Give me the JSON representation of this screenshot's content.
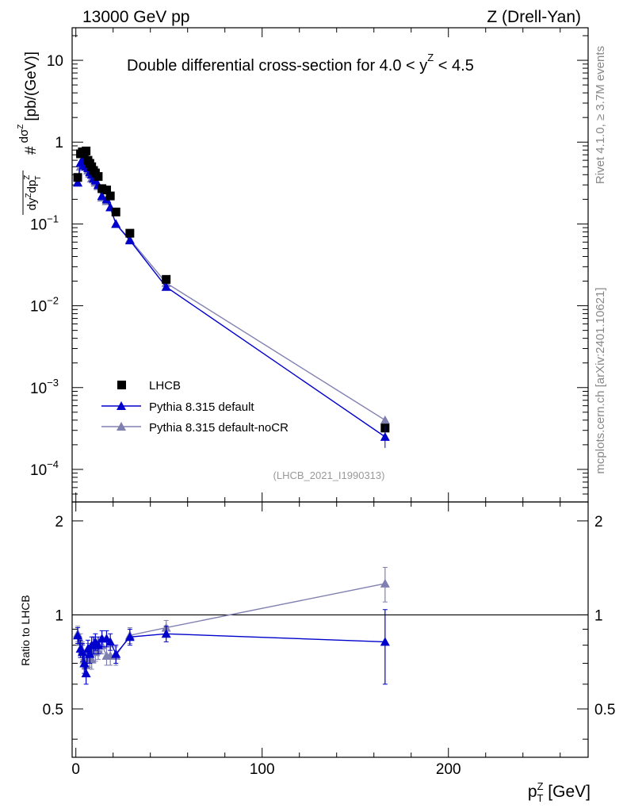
{
  "header": {
    "left": "13000 GeV pp",
    "right": "Z (Drell-Yan)"
  },
  "side": {
    "rivet": "Rivet 4.1.0, ≥ 3.7M events",
    "mcplots": "mcplots.cern.ch [arXiv:2401.10621]"
  },
  "chart_data": {
    "type": "scatter",
    "title": "Double differential cross-section for 4.0 < y^Z < 4.5",
    "analysis_id": "(LHCB_2021_I1990313)",
    "ylabel": "# dσ^Z / dy^Z dp_T^Z [pb/(GeV)]",
    "xlabel": "p_T^Z [GeV]",
    "ratio_ylabel": "Ratio to LHCB",
    "xlim": [
      -2,
      275
    ],
    "ylim": [
      4e-05,
      25
    ],
    "ratio_ylim": [
      0.35,
      2.3
    ],
    "x_ticks": [
      "0",
      "100",
      "200"
    ],
    "x_tick_values": [
      0,
      100,
      200
    ],
    "y_ticks": [
      "10",
      "1",
      "10^-1",
      "10^-2",
      "10^-3",
      "10^-4"
    ],
    "y_tick_values": [
      10,
      1,
      0.1,
      0.01,
      0.001,
      0.0001
    ],
    "ratio_ticks": [
      "2",
      "1",
      "0.5"
    ],
    "ratio_tick_values": [
      2,
      1,
      0.5
    ],
    "legend_position": "bottom-left",
    "x": [
      1,
      2.5,
      3.5,
      4.5,
      5.5,
      6.5,
      7.5,
      8.5,
      9.5,
      10.5,
      12,
      14,
      16.5,
      18.5,
      21.5,
      29,
      48.5,
      166
    ],
    "series": [
      {
        "name": "LHCB",
        "color": "#000000",
        "marker": "square",
        "values": [
          0.37,
          0.72,
          0.76,
          0.75,
          0.78,
          0.6,
          0.55,
          0.5,
          0.45,
          0.42,
          0.38,
          0.27,
          0.26,
          0.22,
          0.14,
          0.077,
          0.021,
          0.00032
        ]
      },
      {
        "name": "Pythia 8.315 default",
        "color": "#0000CC",
        "marker": "triangle",
        "values": [
          0.32,
          0.56,
          0.6,
          0.52,
          0.5,
          0.48,
          0.43,
          0.4,
          0.36,
          0.34,
          0.3,
          0.22,
          0.2,
          0.16,
          0.1,
          0.063,
          0.017,
          0.00025
        ],
        "ratio": [
          0.86,
          0.78,
          0.76,
          0.7,
          0.65,
          0.78,
          0.75,
          0.8,
          0.8,
          0.82,
          0.8,
          0.84,
          0.84,
          0.82,
          0.75,
          0.85,
          0.87,
          0.82
        ]
      },
      {
        "name": "Pythia 8.315 default-noCR",
        "color": "#8080B0",
        "marker": "triangle",
        "values": [
          0.32,
          0.5,
          0.54,
          0.55,
          0.54,
          0.45,
          0.41,
          0.36,
          0.35,
          0.32,
          0.29,
          0.21,
          0.19,
          0.16,
          0.1,
          0.065,
          0.019,
          0.0004
        ],
        "ratio": [
          0.87,
          0.82,
          0.77,
          0.72,
          0.69,
          0.76,
          0.73,
          0.72,
          0.8,
          0.76,
          0.77,
          0.8,
          0.74,
          0.74,
          0.74,
          0.86,
          0.91,
          1.26
        ]
      }
    ]
  }
}
